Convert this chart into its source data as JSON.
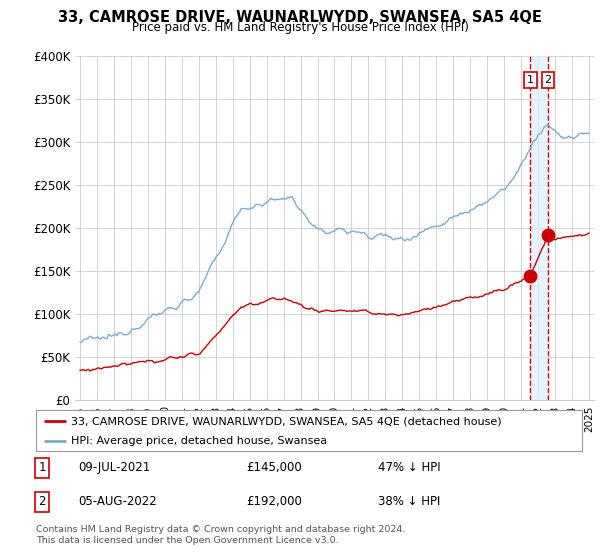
{
  "title": "33, CAMROSE DRIVE, WAUNARLWYDD, SWANSEA, SA5 4QE",
  "subtitle": "Price paid vs. HM Land Registry's House Price Index (HPI)",
  "red_label": "33, CAMROSE DRIVE, WAUNARLWYDD, SWANSEA, SA5 4QE (detached house)",
  "blue_label": "HPI: Average price, detached house, Swansea",
  "footer": "Contains HM Land Registry data © Crown copyright and database right 2024.\nThis data is licensed under the Open Government Licence v3.0.",
  "transaction1_date": "09-JUL-2021",
  "transaction1_price": "£145,000",
  "transaction1_hpi": "47% ↓ HPI",
  "transaction2_date": "05-AUG-2022",
  "transaction2_price": "£192,000",
  "transaction2_hpi": "38% ↓ HPI",
  "red_color": "#cc0000",
  "blue_color": "#7aadcf",
  "vline_color": "#cc0000",
  "shade_color": "#ddeeff",
  "background_color": "#ffffff",
  "grid_color": "#cccccc",
  "ylim": [
    0,
    400000
  ],
  "yticks": [
    0,
    50000,
    100000,
    150000,
    200000,
    250000,
    300000,
    350000,
    400000
  ],
  "ytick_labels": [
    "£0",
    "£50K",
    "£100K",
    "£150K",
    "£200K",
    "£250K",
    "£300K",
    "£350K",
    "£400K"
  ],
  "xstart_year": 1995,
  "xend_year": 2025
}
